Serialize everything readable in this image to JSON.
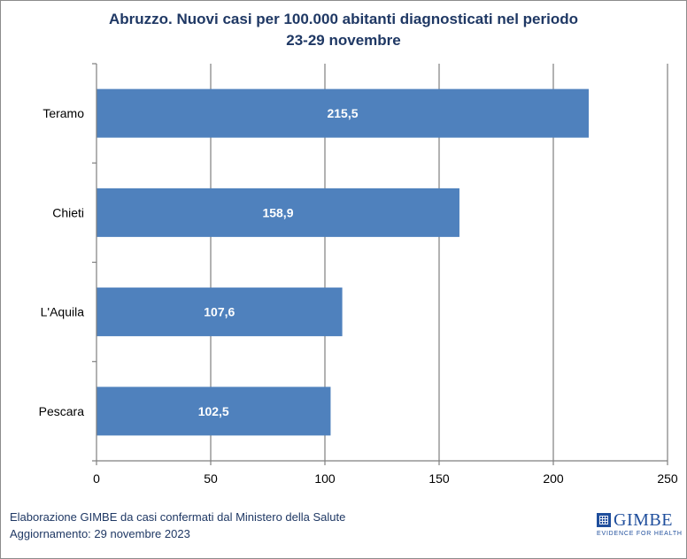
{
  "title": {
    "line1": "Abruzzo. Nuovi casi per 100.000 abitanti diagnosticati nel periodo",
    "line2": "23-29 novembre"
  },
  "footer": {
    "line1": "Elaborazione GIMBE da casi confermati dal Ministero della Salute",
    "line2": "Aggiornamento: 29 novembre 2023"
  },
  "logo": {
    "name": "GIMBE",
    "tagline": "EVIDENCE FOR HEALTH"
  },
  "colors": {
    "bar": "#4f81bd",
    "title": "#1f3864",
    "grid": "#7f7f7f"
  },
  "chart_data": {
    "type": "bar",
    "orientation": "horizontal",
    "categories": [
      "Teramo",
      "Chieti",
      "L'Aquila",
      "Pescara"
    ],
    "values": [
      215.5,
      158.9,
      107.6,
      102.5
    ],
    "value_labels": [
      "215,5",
      "158,9",
      "107,6",
      "102,5"
    ],
    "xlim": [
      0,
      250
    ],
    "xticks": [
      0,
      50,
      100,
      150,
      200,
      250
    ],
    "grid": true
  }
}
